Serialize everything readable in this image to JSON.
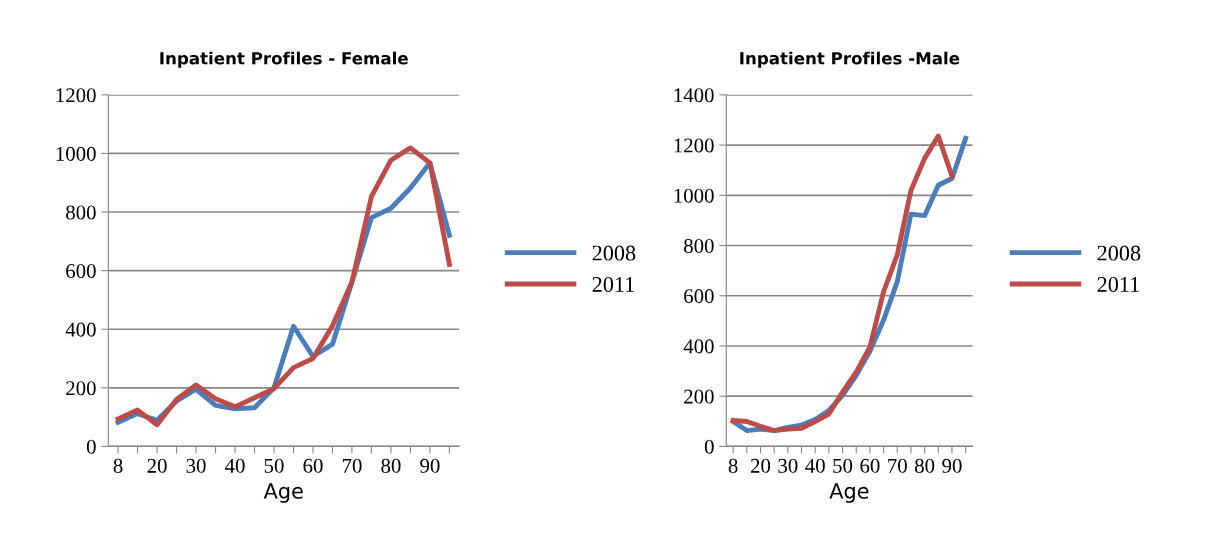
{
  "chart_data": [
    {
      "type": "line",
      "title": "Inpatient Profiles - Female",
      "xlabel": "Age",
      "categories": [
        "8",
        null,
        "20",
        null,
        "30",
        null,
        "40",
        null,
        "50",
        null,
        "60",
        null,
        "70",
        null,
        "80",
        null,
        "90",
        null
      ],
      "series": [
        {
          "name": "2008",
          "color": "#4a7ebb",
          "values": [
            82,
            112,
            89,
            155,
            195,
            140,
            128,
            132,
            200,
            410,
            307,
            349,
            561,
            781,
            813,
            882,
            968,
            721
          ]
        },
        {
          "name": "2011",
          "color": "#be4b48",
          "values": [
            94,
            124,
            74,
            160,
            210,
            163,
            135,
            166,
            197,
            269,
            300,
            412,
            561,
            853,
            977,
            1019,
            968,
            621
          ]
        }
      ],
      "ylim": [
        0,
        1200
      ],
      "yticks": [
        0,
        200,
        400,
        600,
        800,
        1000,
        1200
      ],
      "grid": "y",
      "legend": "right",
      "marker": "none",
      "line_style": "solid"
    },
    {
      "type": "line",
      "title": "Inpatient Profiles -Male",
      "xlabel": "Age",
      "categories": [
        "8",
        null,
        "20",
        null,
        "30",
        null,
        "40",
        null,
        "50",
        null,
        "60",
        null,
        "70",
        null,
        "80",
        null,
        "90",
        null
      ],
      "series": [
        {
          "name": "2008",
          "color": "#4a7ebb",
          "values": [
            99,
            63,
            69,
            63,
            76,
            85,
            107,
            143,
            203,
            283,
            379,
            503,
            656,
            925,
            919,
            1040,
            1067,
            1227
          ]
        },
        {
          "name": "2011",
          "color": "#be4b48",
          "values": [
            103,
            99,
            80,
            63,
            69,
            72,
            99,
            129,
            216,
            296,
            396,
            616,
            763,
            1019,
            1147,
            1236,
            1076,
            null
          ]
        }
      ],
      "ylim": [
        0,
        1400
      ],
      "yticks": [
        0,
        200,
        400,
        600,
        800,
        1000,
        1200,
        1400
      ],
      "grid": "y",
      "legend": "right",
      "marker": "none",
      "line_style": "solid"
    }
  ]
}
